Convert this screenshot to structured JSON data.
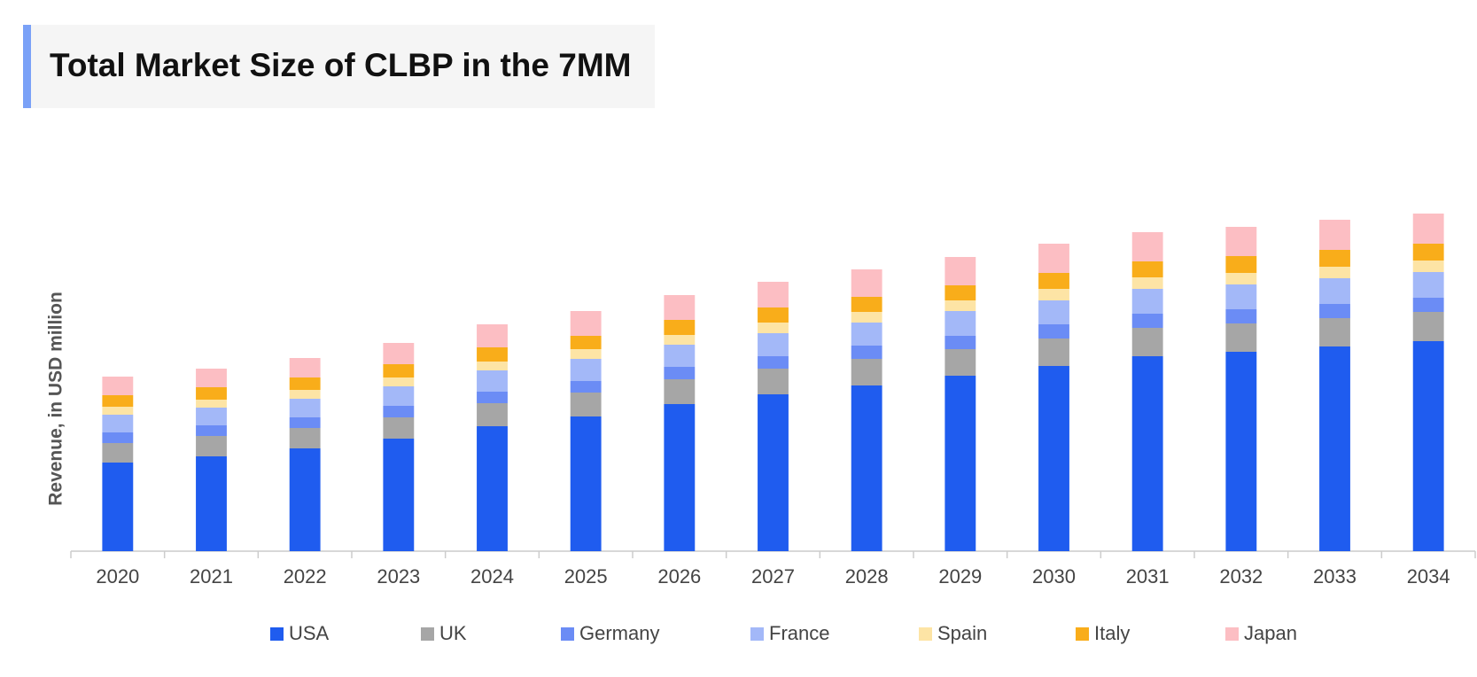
{
  "chart_data": {
    "type": "stacked_bar",
    "title": "Total Market Size of CLBP in the 7MM",
    "y_label": "Revenue, in USD million",
    "categories": [
      "2020",
      "2021",
      "2022",
      "2023",
      "2024",
      "2025",
      "2026",
      "2027",
      "2028",
      "2029",
      "2030",
      "2031",
      "2032",
      "2033",
      "2034"
    ],
    "ylim": [
      0,
      400
    ],
    "series": [
      {
        "name": "USA",
        "color": "#1f5cef",
        "values": [
          100,
          107,
          116,
          127,
          141,
          152,
          166,
          177,
          187,
          198,
          209,
          220,
          225,
          231,
          237
        ]
      },
      {
        "name": "UK",
        "color": "#a6a6a6",
        "values": [
          22,
          23,
          23,
          24,
          26,
          27,
          28,
          29,
          30,
          30,
          31,
          32,
          32,
          32,
          33
        ]
      },
      {
        "name": "Germany",
        "color": "#6b8cf5",
        "values": [
          12,
          12,
          12,
          13,
          13,
          13,
          14,
          14,
          15,
          15,
          16,
          16,
          16,
          16,
          16
        ]
      },
      {
        "name": "France",
        "color": "#a3b8f8",
        "values": [
          20,
          20,
          21,
          22,
          24,
          25,
          25,
          26,
          26,
          28,
          27,
          28,
          28,
          29,
          29
        ]
      },
      {
        "name": "Spain",
        "color": "#fde4a5",
        "values": [
          9,
          9,
          10,
          10,
          10,
          11,
          11,
          12,
          12,
          12,
          13,
          13,
          13,
          13,
          13
        ]
      },
      {
        "name": "Italy",
        "color": "#f9ad1a",
        "values": [
          13,
          14,
          14,
          15,
          16,
          15,
          17,
          17,
          17,
          17,
          18,
          18,
          19,
          19,
          19
        ]
      },
      {
        "name": "Japan",
        "color": "#fcbec3",
        "values": [
          21,
          21,
          22,
          24,
          26,
          28,
          28,
          29,
          31,
          32,
          33,
          33,
          33,
          34,
          34
        ]
      }
    ]
  }
}
